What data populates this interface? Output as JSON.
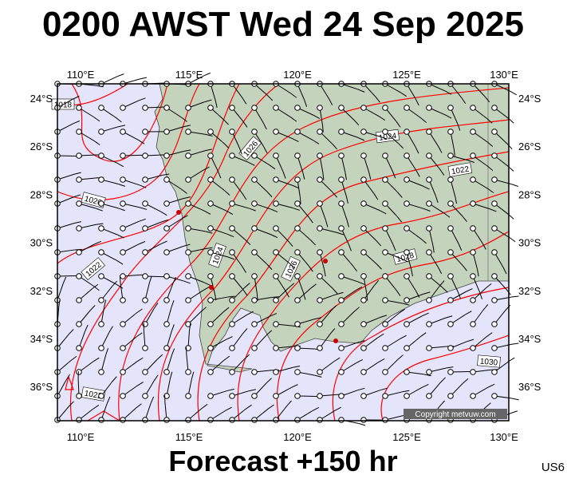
{
  "header": {
    "title": "0200 AWST Wed 24 Sep 2025"
  },
  "map": {
    "lon_labels": [
      "110°E",
      "115°E",
      "120°E",
      "125°E",
      "130°E"
    ],
    "lat_labels": [
      "24°S",
      "26°S",
      "28°S",
      "30°S",
      "32°S",
      "34°S",
      "36°S"
    ],
    "isobar_labels": [
      "1018",
      "1026",
      "1024",
      "1022",
      "1020",
      "1024",
      "1026",
      "1028",
      "1022",
      "1030",
      "1022"
    ],
    "copyright": "Copyright metvuw.com"
  },
  "footer": {
    "forecast": "Forecast +150 hr",
    "code": "US6"
  }
}
